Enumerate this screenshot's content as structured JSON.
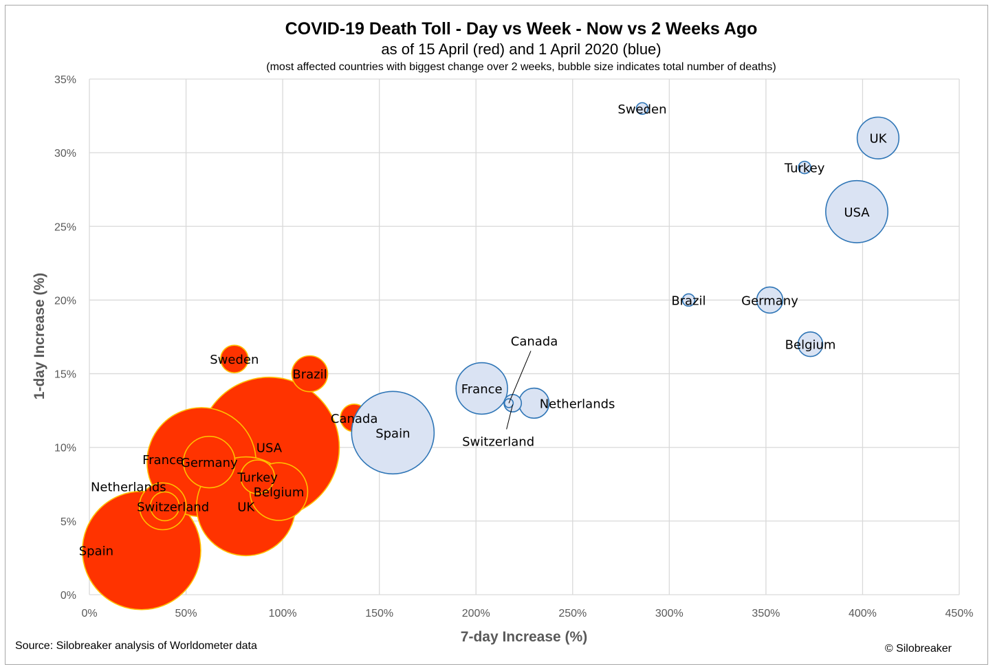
{
  "chart_data": {
    "type": "bubble",
    "title": "COVID-19 Death Toll - Day vs Week - Now vs 2 Weeks Ago",
    "subtitle": "as of 15 April (red) and 1 April 2020 (blue)",
    "note": "(most affected countries with biggest change over 2 weeks, bubble size indicates total number of deaths)",
    "xlabel": "7-day Increase (%)",
    "ylabel": "1-day Increase (%)",
    "xlim": [
      0,
      450
    ],
    "ylim": [
      0,
      35
    ],
    "xticks": [
      0,
      50,
      100,
      150,
      200,
      250,
      300,
      350,
      400,
      450
    ],
    "yticks": [
      0,
      5,
      10,
      15,
      20,
      25,
      30,
      35
    ],
    "xtick_labels": [
      "0%",
      "50%",
      "100%",
      "150%",
      "200%",
      "250%",
      "300%",
      "350%",
      "400%",
      "450%"
    ],
    "ytick_labels": [
      "0%",
      "5%",
      "10%",
      "15%",
      "20%",
      "25%",
      "30%",
      "35%"
    ],
    "grid": true,
    "legend": "none",
    "series": [
      {
        "name": "15 April",
        "color": "#ff3300",
        "edge_color": "#ffc000",
        "points": [
          {
            "label": "USA",
            "x": 93,
            "y": 10,
            "size": 26000
          },
          {
            "label": "Spain",
            "x": 27,
            "y": 3,
            "size": 18500
          },
          {
            "label": "France",
            "x": 58,
            "y": 9,
            "size": 15700
          },
          {
            "label": "UK",
            "x": 81,
            "y": 6,
            "size": 12900
          },
          {
            "label": "Germany",
            "x": 62,
            "y": 9,
            "size": 3500
          },
          {
            "label": "Belgium",
            "x": 98,
            "y": 7,
            "size": 4400
          },
          {
            "label": "Netherlands",
            "x": 38,
            "y": 6,
            "size": 2900
          },
          {
            "label": "Turkey",
            "x": 87,
            "y": 8,
            "size": 1500
          },
          {
            "label": "Switzerland",
            "x": 39,
            "y": 6,
            "size": 1100
          },
          {
            "label": "Sweden",
            "x": 75,
            "y": 16,
            "size": 1000
          },
          {
            "label": "Brazil",
            "x": 114,
            "y": 15,
            "size": 1700
          },
          {
            "label": "Canada",
            "x": 137,
            "y": 12,
            "size": 1000
          }
        ]
      },
      {
        "name": "1 April",
        "color": "#dae3f3",
        "edge_color": "#2e75b6",
        "points": [
          {
            "label": "Spain",
            "x": 157,
            "y": 11,
            "size": 9000
          },
          {
            "label": "France",
            "x": 203,
            "y": 14,
            "size": 3500
          },
          {
            "label": "Switzerland",
            "x": 219,
            "y": 13,
            "size": 400
          },
          {
            "label": "Netherlands",
            "x": 230,
            "y": 13,
            "size": 1200
          },
          {
            "label": "Sweden",
            "x": 286,
            "y": 33,
            "size": 180
          },
          {
            "label": "Brazil",
            "x": 310,
            "y": 20,
            "size": 200
          },
          {
            "label": "Germany",
            "x": 352,
            "y": 20,
            "size": 900
          },
          {
            "label": "Belgium",
            "x": 373,
            "y": 17,
            "size": 800
          },
          {
            "label": "USA",
            "x": 397,
            "y": 26,
            "size": 5100
          },
          {
            "label": "Turkey",
            "x": 370,
            "y": 29,
            "size": 200
          },
          {
            "label": "UK",
            "x": 408,
            "y": 31,
            "size": 2300
          },
          {
            "label": "Canada",
            "x": 217,
            "y": 13,
            "size": 100
          }
        ]
      }
    ]
  },
  "footer": {
    "source": "Source: Silobreaker analysis of Worldometer data",
    "copyright": "© Silobreaker"
  }
}
